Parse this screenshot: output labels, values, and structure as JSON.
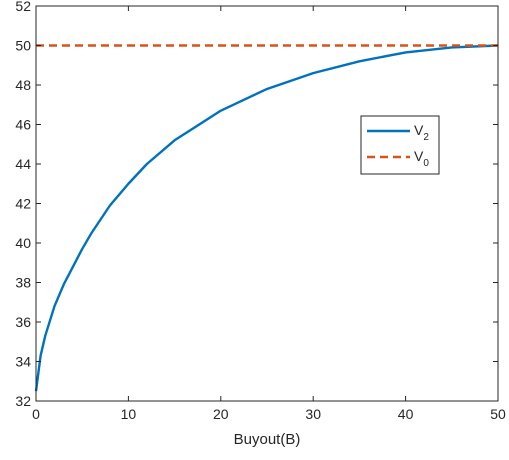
{
  "chart_data": {
    "type": "line",
    "title": "",
    "xlabel": "Buyout(B)",
    "ylabel": "",
    "xlim": [
      0,
      50
    ],
    "ylim": [
      32,
      52
    ],
    "x_ticks": [
      0,
      10,
      20,
      30,
      40,
      50
    ],
    "y_ticks": [
      32,
      34,
      36,
      38,
      40,
      42,
      44,
      46,
      48,
      50,
      52
    ],
    "grid": false,
    "legend_position": "right-center",
    "series": [
      {
        "name": "V2",
        "name_main": "V",
        "name_sub": "2",
        "style": "solid",
        "color": "#0072bd",
        "x": [
          0,
          0.5,
          1,
          2,
          3,
          4,
          5,
          6,
          8,
          10,
          12,
          15,
          20,
          25,
          30,
          35,
          40,
          45,
          50
        ],
        "y": [
          32.5,
          34.3,
          35.3,
          36.8,
          37.9,
          38.8,
          39.7,
          40.5,
          41.9,
          43.0,
          44.0,
          45.2,
          46.7,
          47.8,
          48.6,
          49.2,
          49.65,
          49.9,
          50.0
        ]
      },
      {
        "name": "V0",
        "name_main": "V",
        "name_sub": "0",
        "style": "dashed",
        "color": "#d95319",
        "x": [
          0,
          50
        ],
        "y": [
          50,
          50
        ]
      }
    ]
  }
}
